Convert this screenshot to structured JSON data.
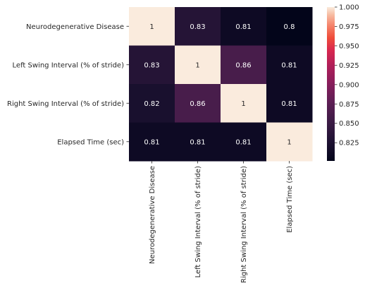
{
  "chart_data": {
    "type": "heatmap",
    "row_labels": [
      "Neurodegenerative Disease",
      "Left Swing Interval (% of stride)",
      "Right Swing Interval (% of stride)",
      "Elapsed Time (sec)"
    ],
    "col_labels": [
      "Neurodegenerative Disease",
      "Left Swing Interval (% of stride)",
      "Right Swing Interval (% of stride)",
      "Elapsed Time (sec)"
    ],
    "values": [
      [
        1,
        0.83,
        0.81,
        0.8
      ],
      [
        0.83,
        1,
        0.86,
        0.81
      ],
      [
        0.82,
        0.86,
        1,
        0.81
      ],
      [
        0.81,
        0.81,
        0.81,
        1
      ]
    ],
    "annotations": [
      [
        "1",
        "0.83",
        "0.81",
        "0.8"
      ],
      [
        "0.83",
        "1",
        "0.86",
        "0.81"
      ],
      [
        "0.82",
        "0.86",
        "1",
        "0.81"
      ],
      [
        "0.81",
        "0.81",
        "0.81",
        "1"
      ]
    ],
    "colormap": "rocket",
    "colorbar": {
      "min": 0.8,
      "max": 1.0,
      "ticks": [
        1.0,
        0.975,
        0.95,
        0.925,
        0.9,
        0.875,
        0.85,
        0.825
      ],
      "tick_labels": [
        "1.000",
        "0.975",
        "0.950",
        "0.925",
        "0.900",
        "0.875",
        "0.850",
        "0.825"
      ]
    }
  }
}
